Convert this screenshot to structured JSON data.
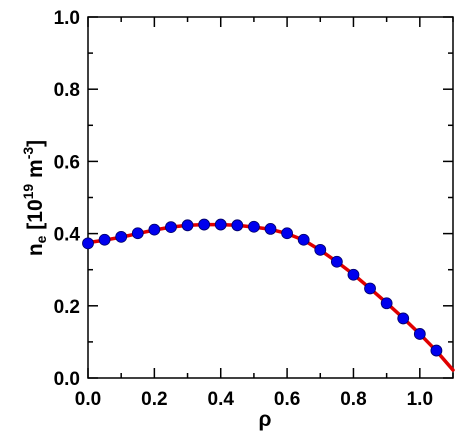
{
  "chart_data": {
    "type": "line",
    "xlabel": "ρ",
    "ylabel": {
      "symbol": "n",
      "subscript": "e",
      "unit_open": " [10",
      "exponent": "19",
      "unit_mid": " m",
      "unit_exponent": "-3",
      "unit_close": "]"
    },
    "xlim": [
      0.0,
      1.1
    ],
    "ylim": [
      0.0,
      1.0
    ],
    "xticks": [
      "0.0",
      "0.2",
      "0.4",
      "0.6",
      "0.8",
      "1.0"
    ],
    "yticks": [
      "0.0",
      "0.2",
      "0.4",
      "0.6",
      "0.8",
      "1.0"
    ],
    "xtick_values": [
      0.0,
      0.2,
      0.4,
      0.6,
      0.8,
      1.0
    ],
    "ytick_values": [
      0.0,
      0.2,
      0.4,
      0.6,
      0.8,
      1.0
    ],
    "grid": false,
    "series": [
      {
        "style": "line",
        "color": "#e00000",
        "x": [
          0.0,
          0.05,
          0.1,
          0.15,
          0.2,
          0.25,
          0.3,
          0.35,
          0.4,
          0.45,
          0.5,
          0.55,
          0.6,
          0.65,
          0.7,
          0.75,
          0.8,
          0.85,
          0.9,
          0.95,
          1.0,
          1.05,
          1.1
        ],
        "y": [
          0.375,
          0.382,
          0.39,
          0.4,
          0.41,
          0.418,
          0.423,
          0.425,
          0.425,
          0.423,
          0.418,
          0.412,
          0.4,
          0.382,
          0.354,
          0.322,
          0.287,
          0.248,
          0.208,
          0.166,
          0.122,
          0.075,
          0.022
        ]
      },
      {
        "style": "markers",
        "color": "#0000ee",
        "x": [
          0.0,
          0.05,
          0.1,
          0.15,
          0.2,
          0.25,
          0.3,
          0.35,
          0.4,
          0.45,
          0.5,
          0.55,
          0.6,
          0.65,
          0.7,
          0.75,
          0.8,
          0.85,
          0.9,
          0.95,
          1.0,
          1.05
        ],
        "y": [
          0.373,
          0.383,
          0.391,
          0.401,
          0.411,
          0.418,
          0.423,
          0.425,
          0.425,
          0.423,
          0.419,
          0.413,
          0.401,
          0.383,
          0.355,
          0.322,
          0.286,
          0.248,
          0.207,
          0.165,
          0.122,
          0.076
        ]
      }
    ]
  }
}
